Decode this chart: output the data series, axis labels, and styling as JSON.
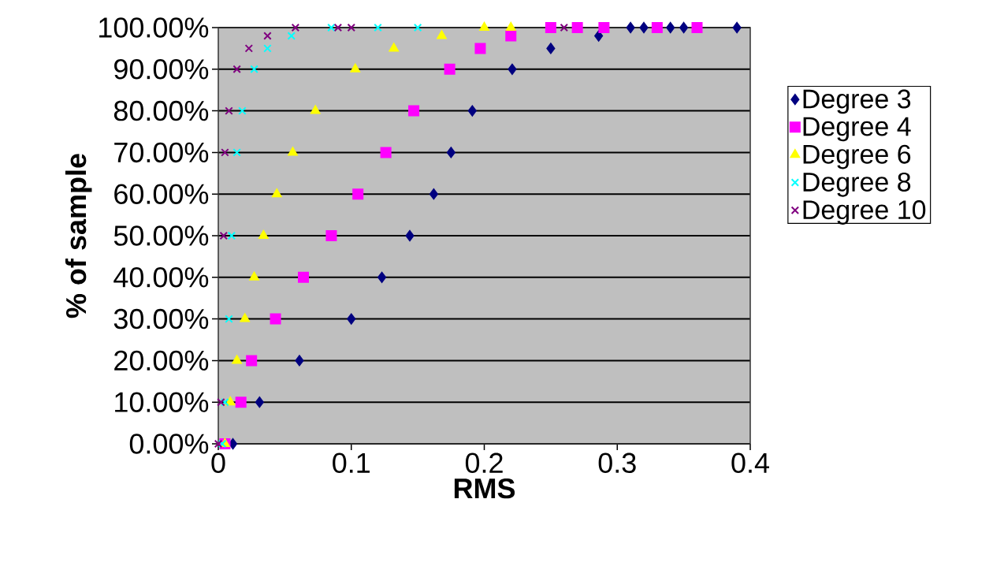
{
  "chart_data": {
    "type": "scatter",
    "xlabel": "RMS",
    "ylabel": "% of sample",
    "xlim": [
      0,
      0.4
    ],
    "xticks": [
      0,
      0.1,
      0.2,
      0.3,
      0.4
    ],
    "ylim": [
      0,
      100
    ],
    "yticks": [
      {
        "value": 0,
        "label": "0.00%"
      },
      {
        "value": 10,
        "label": "10.00%"
      },
      {
        "value": 20,
        "label": "20.00%"
      },
      {
        "value": 30,
        "label": "30.00%"
      },
      {
        "value": 40,
        "label": "40.00%"
      },
      {
        "value": 50,
        "label": "50.00%"
      },
      {
        "value": 60,
        "label": "60.00%"
      },
      {
        "value": 70,
        "label": "70.00%"
      },
      {
        "value": 80,
        "label": "80.00%"
      },
      {
        "value": 90,
        "label": "90.00%"
      },
      {
        "value": 100,
        "label": "100.00%"
      }
    ],
    "grid": "y",
    "legend": "right",
    "series": [
      {
        "name": "Degree 3",
        "color": "#000080",
        "marker": "diamond",
        "x": [
          0.011,
          0.031,
          0.061,
          0.1,
          0.123,
          0.144,
          0.162,
          0.175,
          0.191,
          0.221,
          0.25,
          0.286,
          0.31,
          0.32,
          0.34,
          0.35,
          0.39
        ],
        "values": [
          0,
          10,
          20,
          30,
          40,
          50,
          60,
          70,
          80,
          90,
          95,
          98,
          100,
          100,
          100,
          100,
          100
        ]
      },
      {
        "name": "Degree 4",
        "color": "#ff00ff",
        "marker": "square",
        "x": [
          0.005,
          0.017,
          0.025,
          0.043,
          0.064,
          0.085,
          0.105,
          0.126,
          0.147,
          0.174,
          0.197,
          0.22,
          0.25,
          0.27,
          0.29,
          0.33,
          0.36
        ],
        "values": [
          0,
          10,
          20,
          30,
          40,
          50,
          60,
          70,
          80,
          90,
          95,
          98,
          100,
          100,
          100,
          100,
          100
        ]
      },
      {
        "name": "Degree 6",
        "color": "#ffff00",
        "marker": "triangle",
        "x": [
          0.005,
          0.009,
          0.014,
          0.02,
          0.027,
          0.034,
          0.044,
          0.056,
          0.073,
          0.103,
          0.132,
          0.168,
          0.2,
          0.22
        ],
        "values": [
          0,
          10,
          20,
          30,
          40,
          50,
          60,
          70,
          80,
          90,
          95,
          98,
          100,
          100
        ]
      },
      {
        "name": "Degree 8",
        "color": "#00ffff",
        "marker": "cross",
        "x": [
          0.003,
          0.005,
          0.008,
          0.01,
          0.014,
          0.018,
          0.027,
          0.037,
          0.055,
          0.085,
          0.12,
          0.15
        ],
        "values": [
          0,
          10,
          30,
          50,
          70,
          80,
          90,
          95,
          98,
          100,
          100,
          100
        ]
      },
      {
        "name": "Degree 10",
        "color": "#800080",
        "marker": "cross",
        "x": [
          0,
          0.002,
          0.004,
          0.005,
          0.008,
          0.014,
          0.023,
          0.037,
          0.058,
          0.09,
          0.1,
          0.26
        ],
        "values": [
          0,
          10,
          50,
          70,
          80,
          90,
          95,
          98,
          100,
          100,
          100,
          100
        ]
      }
    ]
  }
}
